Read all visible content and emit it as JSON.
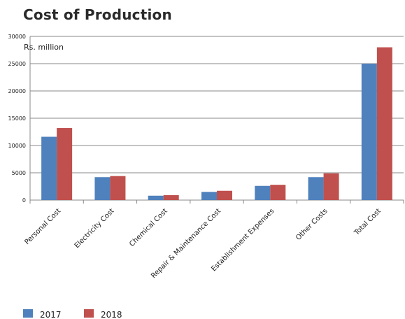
{
  "title": "Cost of Production",
  "chart_data": {
    "type": "bar",
    "title": "Cost of Production",
    "ylabel": "Rs. million",
    "xlabel": "",
    "categories": [
      "Personal Cost",
      "Electricity Cost",
      "Chemical Cost",
      "Repair & Maintenance Cost",
      "Establishment Expenses",
      "Other Costs",
      "Total Cost"
    ],
    "series": [
      {
        "name": "2017",
        "color": "#4f81bd",
        "values": [
          11600,
          4200,
          800,
          1500,
          2600,
          4200,
          25000
        ]
      },
      {
        "name": "2018",
        "color": "#c0504d",
        "values": [
          13200,
          4400,
          900,
          1700,
          2800,
          4900,
          28000
        ]
      }
    ],
    "ylim": [
      0,
      30000
    ],
    "yticks": [
      0,
      5000,
      10000,
      15000,
      20000,
      25000,
      30000
    ],
    "grid": true,
    "legend": "bottom-left"
  }
}
